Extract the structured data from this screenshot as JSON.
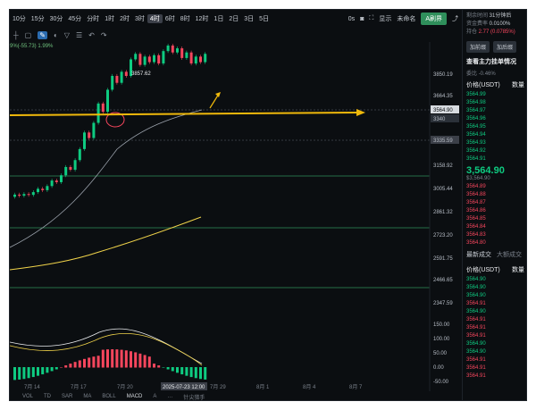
{
  "toolbar": {
    "timeframes": [
      "10分",
      "15分",
      "30分",
      "45分",
      "分时",
      "1时",
      "2时",
      "3时",
      "4时",
      "6时",
      "8时",
      "12时",
      "1日",
      "2日",
      "3日",
      "5日"
    ],
    "active_timeframe": "4时",
    "seconds_label": "0s",
    "display_label": "显示",
    "unnamed_label": "未命名",
    "a_button": "A刷界"
  },
  "indicator_text": "9%(-55.73) 1.99%",
  "price_axis": {
    "labels": [
      "3850.19",
      "3664.35",
      "3564.90",
      "3340",
      "3335.59",
      "3158.92",
      "3005.44",
      "2861.32",
      "2723.20",
      "2591.75",
      "2466.65",
      "2347.59"
    ],
    "macd_labels": [
      "150.00",
      "100.00",
      "50.00",
      "0.00",
      "-50.00"
    ]
  },
  "time_axis": {
    "labels": [
      "7月 14",
      "7月 17",
      "7月 20",
      "7月 26",
      "7月 29",
      "8月 1",
      "8月 4",
      "8月 7"
    ],
    "cursor_label": "2025-07-23 12:00"
  },
  "annotations": {
    "high_label": "3857.62"
  },
  "bottom_tabs": [
    "VOL",
    "TD",
    "SAR",
    "MA",
    "BOLL",
    "MACD",
    "A",
    "…",
    "针尖猎手"
  ],
  "active_bottom_tab": "MACD",
  "sidebar": {
    "top_lines": [
      {
        "label": "剩余时间",
        "value": "31分钟后"
      },
      {
        "label": "资金费率",
        "value": "0.0100%"
      },
      {
        "label": "持仓",
        "value": "2.77 (0.0785%)"
      }
    ],
    "buttons": [
      "加前缀",
      "加后缀"
    ],
    "depth_title": "查看主力挂单情况",
    "ratio_label": "委比",
    "ratio_value": "-0.46%",
    "col_price": "价格(USDT)",
    "col_qty": "数量",
    "asks": [
      "3564.99",
      "3564.98",
      "3564.97",
      "3564.96",
      "3564.95",
      "3564.94",
      "3564.93",
      "3564.92",
      "3564.91"
    ],
    "last_price": "3,564.90",
    "last_price_sub": "$3,564.90",
    "bids": [
      "3564.89",
      "3564.88",
      "3564.87",
      "3564.86",
      "3564.85",
      "3564.84",
      "3564.83",
      "3564.80"
    ],
    "trades_tab": "最新成交",
    "large_trades_tab": "大额成交",
    "trades": [
      {
        "p": "3564.90",
        "side": "buy"
      },
      {
        "p": "3564.90",
        "side": "buy"
      },
      {
        "p": "3564.90",
        "side": "buy"
      },
      {
        "p": "3564.91",
        "side": "sell"
      },
      {
        "p": "3564.90",
        "side": "buy"
      },
      {
        "p": "3564.91",
        "side": "sell"
      },
      {
        "p": "3564.91",
        "side": "sell"
      },
      {
        "p": "3564.91",
        "side": "sell"
      },
      {
        "p": "3564.90",
        "side": "buy"
      },
      {
        "p": "3564.90",
        "side": "buy"
      },
      {
        "p": "3564.91",
        "side": "sell"
      },
      {
        "p": "3564.91",
        "side": "sell"
      },
      {
        "p": "3564.91",
        "side": "sell"
      }
    ]
  },
  "colors": {
    "up": "#0ecb81",
    "down": "#f6465d",
    "accent": "#f0b90b",
    "bg": "#0b0e11"
  }
}
